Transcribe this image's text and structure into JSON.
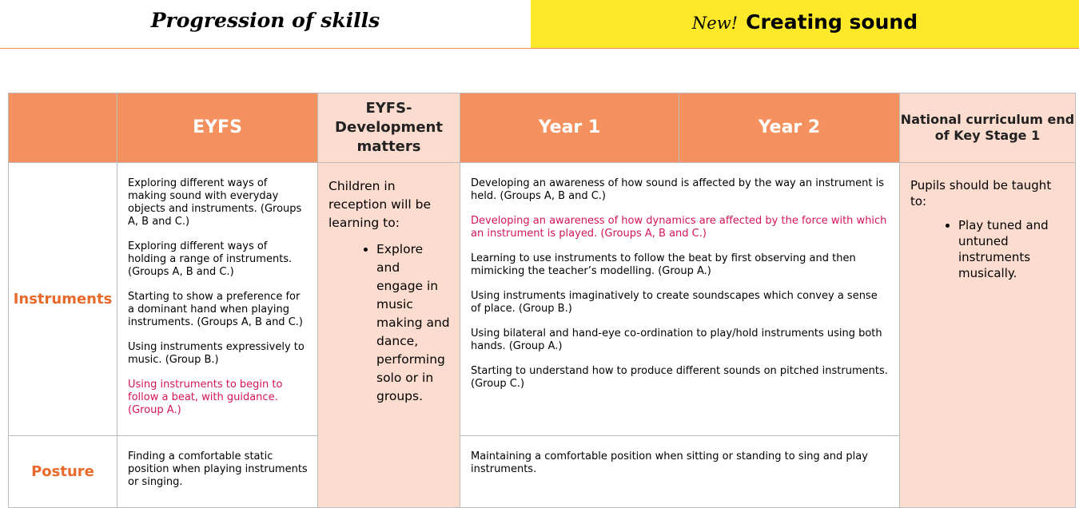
{
  "header": {
    "title": "Progression of skills",
    "badge": "New!",
    "topic": "Creating sound"
  },
  "table": {
    "headers": [
      "EYFS",
      "EYFS- Development matters",
      "Year 1",
      "Year 2",
      "National curriculum end of Key Stage 1"
    ],
    "development_matters": {
      "intro": "Children in reception will be learning to:",
      "bullets": [
        "Explore and engage in music making and dance, performing solo or in groups."
      ]
    },
    "national_curriculum": {
      "intro": "Pupils should be taught to:",
      "bullets": [
        "Play tuned and untuned instruments musically."
      ]
    },
    "rows": [
      {
        "label": "Instruments",
        "eyfs": [
          "Exploring different ways of making sound with everyday objects and instruments. (Groups A, B and C.)",
          "Exploring different ways of holding a range of instruments. (Groups A, B and C.)",
          "Starting to show a preference for a dominant hand when playing instruments. (Groups A, B and C.)",
          "Using instruments expressively to music. (Group B.)",
          "Using instruments to begin to follow a beat, with guidance. (Group A.)"
        ],
        "years": [
          "Developing an awareness of how sound is affected by the way an instrument is held. (Groups A, B and C.)",
          "Developing an awareness of how dynamics are affected by the force with which an instrument is played. (Groups A, B and C.)",
          "Learning to use instruments to follow the beat by first observing and then mimicking the teacher’s modelling. (Group A.)",
          "Using instruments imaginatively to create soundscapes which convey a sense of place. (Group B.)",
          "Using bilateral and hand-eye co-ordination to play/hold instruments using both hands. (Group A.)",
          "Starting to understand how to produce different sounds on pitched instruments. (Group C.)"
        ]
      },
      {
        "label": "Posture",
        "eyfs": [
          "Finding a comfortable static position when playing instruments or singing."
        ],
        "years": [
          "Maintaining a comfortable position when sitting or standing to sing and play instruments."
        ]
      }
    ]
  }
}
